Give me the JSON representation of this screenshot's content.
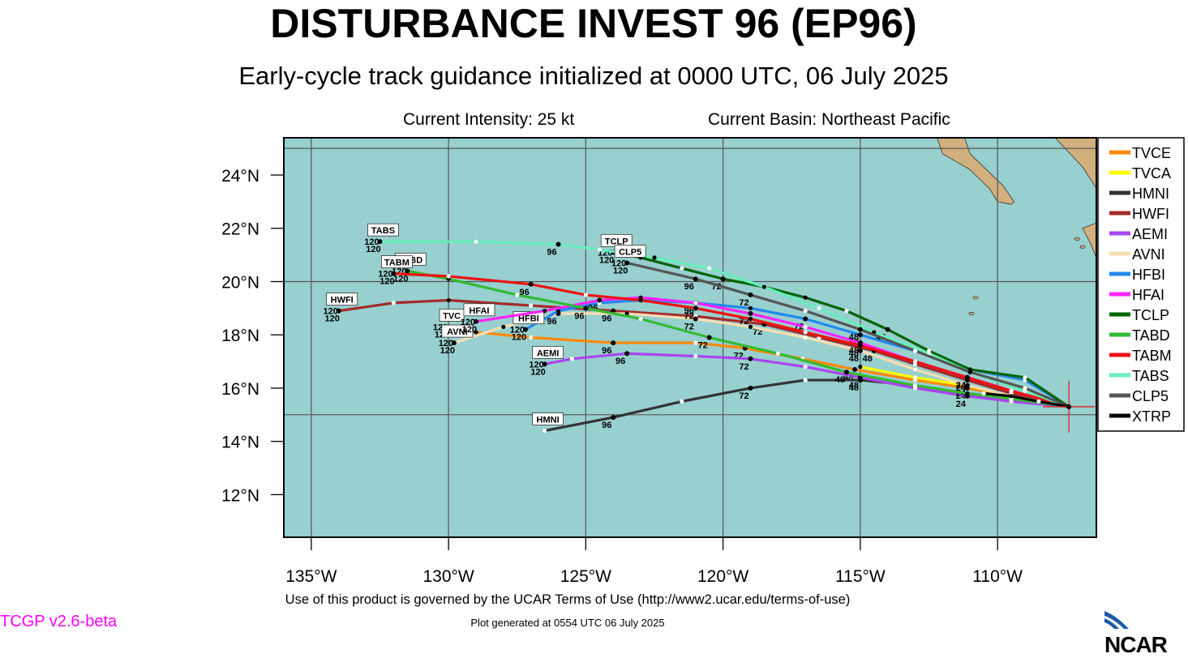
{
  "header": {
    "title": "DISTURBANCE INVEST 96 (EP96)",
    "subtitle": "Early-cycle track guidance initialized at 0000 UTC, 06 July 2025",
    "intensity": "Current Intensity: 25 kt",
    "basin": "Current Basin: Northeast Pacific"
  },
  "footer": {
    "terms": "Use of this product is governed by the UCAR Terms of Use (http://www2.ucar.edu/terms-of-use)",
    "generated": "Plot generated at 0554 UTC   06 July 2025",
    "version": "TCGP v2.6-beta",
    "logo": "NCAR"
  },
  "colors": {
    "ocean": "#98cfcf",
    "land": "#d2b07e",
    "grid": "#555555",
    "storm_marker": "#e02020"
  },
  "chart_data": {
    "type": "map-track",
    "lon_ticks": [
      "135°W",
      "130°W",
      "125°W",
      "120°W",
      "115°W",
      "110°W"
    ],
    "lat_ticks": [
      "12°N",
      "14°N",
      "16°N",
      "18°N",
      "20°N",
      "22°N",
      "24°N"
    ],
    "lon_values": [
      -135,
      -130,
      -125,
      -120,
      -115,
      -110
    ],
    "lat_values": [
      12,
      14,
      16,
      18,
      20,
      22,
      24
    ],
    "lon_range": [
      -136,
      -106.4
    ],
    "lat_range": [
      10.4,
      25.4
    ],
    "storm_position": [
      -107.4,
      15.3
    ],
    "legend_position": "right",
    "tracks": [
      {
        "name": "TVCE",
        "color": "#ff8800",
        "label": "TVC",
        "label_hour": "120",
        "points": [
          [
            -107.4,
            15.3
          ],
          [
            -109.5,
            15.7
          ],
          [
            -111.1,
            16.0
          ],
          [
            -113.0,
            16.3
          ],
          [
            -115.2,
            16.7
          ],
          [
            -117.1,
            17.1
          ],
          [
            -119.2,
            17.5
          ],
          [
            -121.0,
            17.7
          ],
          [
            -124.0,
            17.7
          ],
          [
            -127.0,
            17.9
          ],
          [
            -129.0,
            18.1
          ],
          [
            -130.0,
            18.3
          ]
        ],
        "hours": [
          {
            "t": "24",
            "p": [
              -111.1,
              16.0
            ]
          },
          {
            "t": "48",
            "p": [
              -115.2,
              16.7
            ]
          },
          {
            "t": "72",
            "p": [
              -119.2,
              17.5
            ]
          },
          {
            "t": "96",
            "p": [
              -124.0,
              17.7
            ]
          },
          {
            "t": "120",
            "p": [
              -130.0,
              18.3
            ]
          }
        ]
      },
      {
        "name": "TVCA",
        "color": "#ffff00",
        "label": "",
        "label_hour": "",
        "points": [
          [
            -107.4,
            15.3
          ],
          [
            -109.5,
            15.7
          ],
          [
            -111.1,
            16.1
          ],
          [
            -113.0,
            16.4
          ],
          [
            -115.0,
            16.8
          ]
        ],
        "hours": []
      },
      {
        "name": "HMNI",
        "color": "#333333",
        "label": "HMNI",
        "label_hour": "",
        "points": [
          [
            -107.4,
            15.3
          ],
          [
            -109.5,
            15.6
          ],
          [
            -111.1,
            15.8
          ],
          [
            -113.0,
            16.1
          ],
          [
            -115.0,
            16.3
          ],
          [
            -117.0,
            16.3
          ],
          [
            -119.0,
            16.0
          ],
          [
            -121.5,
            15.5
          ],
          [
            -124.0,
            14.9
          ],
          [
            -126.5,
            14.4
          ]
        ],
        "hours": [
          {
            "t": "48",
            "p": [
              -115.0,
              16.3
            ]
          },
          {
            "t": "72",
            "p": [
              -119.0,
              16.0
            ]
          },
          {
            "t": "96",
            "p": [
              -124.0,
              14.9
            ]
          }
        ]
      },
      {
        "name": "HWFI",
        "color": "#a52a2a",
        "label": "HWFI",
        "label_hour": "120",
        "points": [
          [
            -107.4,
            15.3
          ],
          [
            -109.5,
            15.8
          ],
          [
            -111.1,
            16.3
          ],
          [
            -113.0,
            16.9
          ],
          [
            -114.5,
            17.4
          ],
          [
            -116.5,
            17.9
          ],
          [
            -118.5,
            18.4
          ],
          [
            -121.0,
            18.7
          ],
          [
            -124.0,
            18.9
          ],
          [
            -127.0,
            19.1
          ],
          [
            -130.0,
            19.3
          ],
          [
            -132.0,
            19.2
          ],
          [
            -134.0,
            18.9
          ]
        ],
        "hours": [
          {
            "t": "24",
            "p": [
              -111.1,
              16.3
            ]
          },
          {
            "t": "48",
            "p": [
              -114.5,
              17.4
            ]
          },
          {
            "t": "72",
            "p": [
              -118.5,
              18.4
            ]
          },
          {
            "t": "96",
            "p": [
              -124.0,
              18.9
            ]
          },
          {
            "t": "120",
            "p": [
              -134.0,
              18.9
            ]
          }
        ]
      },
      {
        "name": "AEMI",
        "color": "#aa44ee",
        "label": "AEMI",
        "label_hour": "120",
        "points": [
          [
            -107.4,
            15.3
          ],
          [
            -109.5,
            15.5
          ],
          [
            -111.1,
            15.7
          ],
          [
            -113.0,
            16.0
          ],
          [
            -115.0,
            16.4
          ],
          [
            -117.0,
            16.8
          ],
          [
            -119.0,
            17.1
          ],
          [
            -121.0,
            17.2
          ],
          [
            -123.5,
            17.3
          ],
          [
            -125.5,
            17.1
          ],
          [
            -126.5,
            16.9
          ]
        ],
        "hours": [
          {
            "t": "24",
            "p": [
              -111.1,
              15.7
            ]
          },
          {
            "t": "48",
            "p": [
              -115.0,
              16.4
            ]
          },
          {
            "t": "72",
            "p": [
              -119.0,
              17.1
            ]
          },
          {
            "t": "96",
            "p": [
              -123.5,
              17.3
            ]
          },
          {
            "t": "120",
            "p": [
              -126.5,
              16.9
            ]
          }
        ]
      },
      {
        "name": "AVNI",
        "color": "#f5deb3",
        "label": "AVNI",
        "label_hour": "120",
        "points": [
          [
            -107.4,
            15.3
          ],
          [
            -109.5,
            15.7
          ],
          [
            -111.1,
            16.1
          ],
          [
            -113.0,
            16.7
          ],
          [
            -115.0,
            17.4
          ],
          [
            -117.0,
            17.9
          ],
          [
            -119.0,
            18.3
          ],
          [
            -121.0,
            18.6
          ],
          [
            -123.5,
            18.8
          ],
          [
            -126.0,
            18.8
          ],
          [
            -128.0,
            18.3
          ],
          [
            -129.8,
            17.7
          ]
        ],
        "hours": [
          {
            "t": "24",
            "p": [
              -111.1,
              16.1
            ]
          },
          {
            "t": "48",
            "p": [
              -115.0,
              17.4
            ]
          },
          {
            "t": "72",
            "p": [
              -121.0,
              18.6
            ]
          },
          {
            "t": "96",
            "p": [
              -126.0,
              18.8
            ]
          },
          {
            "t": "120",
            "p": [
              -129.8,
              17.7
            ]
          }
        ]
      },
      {
        "name": "HFBI",
        "color": "#2288ee",
        "label": "HFBI",
        "label_hour": "120",
        "points": [
          [
            -107.4,
            15.3
          ],
          [
            -109.0,
            16.3
          ],
          [
            -111.0,
            16.7
          ],
          [
            -113.0,
            17.4
          ],
          [
            -115.0,
            18.0
          ],
          [
            -117.0,
            18.6
          ],
          [
            -119.0,
            19.0
          ],
          [
            -121.0,
            19.2
          ],
          [
            -123.0,
            19.3
          ],
          [
            -124.5,
            19.2
          ],
          [
            -126.0,
            18.9
          ],
          [
            -127.2,
            18.2
          ]
        ],
        "hours": [
          {
            "t": "48",
            "p": [
              -115.0,
              18.0
            ]
          },
          {
            "t": "72",
            "p": [
              -117.0,
              18.6
            ]
          },
          {
            "t": "96",
            "p": [
              -121.0,
              19.2
            ]
          },
          {
            "t": "120",
            "p": [
              -127.2,
              18.2
            ]
          }
        ]
      },
      {
        "name": "HFAI",
        "color": "#ff22ff",
        "label": "HFAI",
        "label_hour": "120",
        "points": [
          [
            -107.4,
            15.3
          ],
          [
            -109.5,
            15.9
          ],
          [
            -111.1,
            16.4
          ],
          [
            -113.0,
            17.0
          ],
          [
            -115.0,
            17.7
          ],
          [
            -117.0,
            18.3
          ],
          [
            -119.0,
            18.8
          ],
          [
            -121.0,
            19.2
          ],
          [
            -123.0,
            19.4
          ],
          [
            -124.5,
            19.3
          ],
          [
            -126.5,
            18.9
          ],
          [
            -129.0,
            18.5
          ]
        ],
        "hours": [
          {
            "t": "24",
            "p": [
              -111.1,
              16.4
            ]
          },
          {
            "t": "48",
            "p": [
              -115.0,
              17.7
            ]
          },
          {
            "t": "72",
            "p": [
              -119.0,
              18.8
            ]
          },
          {
            "t": "96",
            "p": [
              -124.5,
              19.3
            ]
          },
          {
            "t": "120",
            "p": [
              -129.0,
              18.5
            ]
          }
        ]
      },
      {
        "name": "TCLP",
        "color": "#006400",
        "label": "TCLP",
        "label_hour": "120",
        "points": [
          [
            -107.4,
            15.3
          ],
          [
            -109.0,
            16.4
          ],
          [
            -111.0,
            16.7
          ],
          [
            -112.5,
            17.4
          ],
          [
            -114.0,
            18.2
          ],
          [
            -115.5,
            18.9
          ],
          [
            -117.0,
            19.4
          ],
          [
            -118.5,
            19.8
          ],
          [
            -120.0,
            20.1
          ],
          [
            -121.5,
            20.5
          ],
          [
            -123.0,
            20.9
          ],
          [
            -124.0,
            21.1
          ]
        ],
        "hours": [
          {
            "t": "48",
            "p": [
              -114.0,
              18.2
            ]
          },
          {
            "t": "72",
            "p": [
              -120.0,
              20.1
            ]
          },
          {
            "t": "120",
            "p": [
              -124.0,
              21.1
            ]
          }
        ]
      },
      {
        "name": "TABD",
        "color": "#33bb33",
        "label": "TABD",
        "label_hour": "120",
        "points": [
          [
            -107.4,
            15.3
          ],
          [
            -109.5,
            15.6
          ],
          [
            -111.1,
            15.8
          ],
          [
            -113.0,
            16.1
          ],
          [
            -115.5,
            16.6
          ],
          [
            -118.0,
            17.3
          ],
          [
            -120.5,
            17.9
          ],
          [
            -123.0,
            18.6
          ],
          [
            -125.0,
            19.0
          ],
          [
            -127.5,
            19.5
          ],
          [
            -130.0,
            20.1
          ],
          [
            -131.5,
            20.4
          ]
        ],
        "hours": [
          {
            "t": "48",
            "p": [
              -115.5,
              16.6
            ]
          },
          {
            "t": "72",
            "p": [
              -120.5,
              17.9
            ]
          },
          {
            "t": "96",
            "p": [
              -125.0,
              19.0
            ]
          },
          {
            "t": "120",
            "p": [
              -131.5,
              20.4
            ]
          }
        ]
      },
      {
        "name": "TABM",
        "color": "#ee1111",
        "label": "TABM",
        "label_hour": "120",
        "points": [
          [
            -107.4,
            15.3
          ],
          [
            -109.5,
            15.9
          ],
          [
            -111.1,
            16.4
          ],
          [
            -113.0,
            17.0
          ],
          [
            -115.0,
            17.6
          ],
          [
            -117.0,
            18.1
          ],
          [
            -119.0,
            18.6
          ],
          [
            -121.0,
            19.0
          ],
          [
            -123.0,
            19.3
          ],
          [
            -125.0,
            19.5
          ],
          [
            -127.0,
            19.9
          ],
          [
            -130.0,
            20.2
          ],
          [
            -132.0,
            20.3
          ]
        ],
        "hours": [
          {
            "t": "24",
            "p": [
              -111.1,
              16.4
            ]
          },
          {
            "t": "48",
            "p": [
              -115.0,
              17.6
            ]
          },
          {
            "t": "72",
            "p": [
              -121.0,
              19.0
            ]
          },
          {
            "t": "96",
            "p": [
              -127.0,
              19.9
            ]
          },
          {
            "t": "120",
            "p": [
              -132.0,
              20.3
            ]
          }
        ]
      },
      {
        "name": "TABS",
        "color": "#66eebb",
        "label": "TABS",
        "label_hour": "120",
        "points": [
          [
            -107.4,
            15.3
          ],
          [
            -109.0,
            15.9
          ],
          [
            -111.0,
            16.6
          ],
          [
            -112.5,
            17.3
          ],
          [
            -114.5,
            18.1
          ],
          [
            -116.5,
            19.0
          ],
          [
            -118.5,
            19.8
          ],
          [
            -120.5,
            20.5
          ],
          [
            -122.5,
            20.9
          ],
          [
            -124.5,
            21.2
          ],
          [
            -126.0,
            21.4
          ],
          [
            -129.0,
            21.5
          ],
          [
            -132.5,
            21.5
          ]
        ],
        "hours": [
          {
            "t": "96",
            "p": [
              -126.0,
              21.4
            ]
          },
          {
            "t": "120",
            "p": [
              -132.5,
              21.5
            ]
          }
        ]
      },
      {
        "name": "CLP5",
        "color": "#555555",
        "label": "CLP5",
        "label_hour": "120",
        "points": [
          [
            -107.4,
            15.3
          ],
          [
            -109.0,
            16.0
          ],
          [
            -111.0,
            16.6
          ],
          [
            -113.0,
            17.4
          ],
          [
            -115.0,
            18.2
          ],
          [
            -117.0,
            18.9
          ],
          [
            -119.0,
            19.5
          ],
          [
            -121.0,
            20.1
          ],
          [
            -123.5,
            20.7
          ]
        ],
        "hours": [
          {
            "t": "48",
            "p": [
              -115.0,
              18.2
            ]
          },
          {
            "t": "72",
            "p": [
              -119.0,
              19.5
            ]
          },
          {
            "t": "96",
            "p": [
              -121.0,
              20.1
            ]
          },
          {
            "t": "120",
            "p": [
              -123.5,
              20.7
            ]
          }
        ]
      },
      {
        "name": "XTRP",
        "color": "#000000",
        "label": "",
        "label_hour": "",
        "points": [
          [
            -107.4,
            15.3
          ],
          [
            -108.5,
            15.5
          ],
          [
            -109.5,
            15.7
          ],
          [
            -110.5,
            15.8
          ]
        ],
        "hours": []
      }
    ]
  }
}
